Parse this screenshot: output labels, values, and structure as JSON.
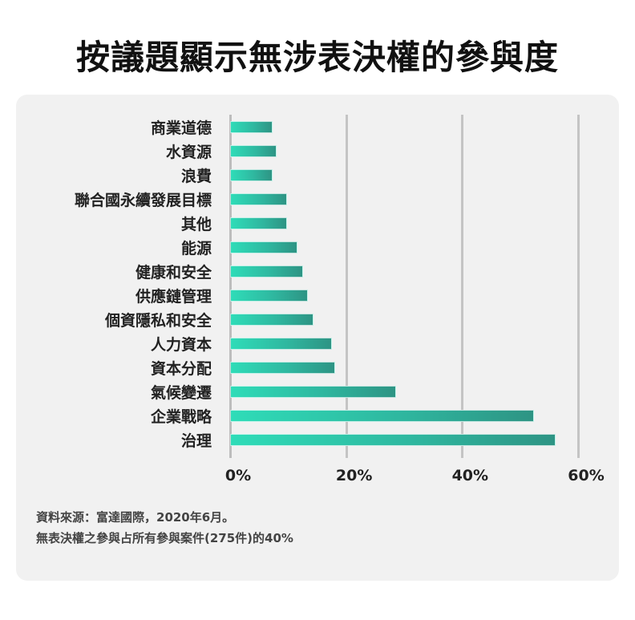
{
  "title": "按議題顯示無涉表決權的參與度",
  "chart_data": {
    "type": "bar",
    "orientation": "horizontal",
    "title": "按議題顯示無涉表決權的參與度",
    "xlabel": "",
    "ylabel": "",
    "xlim": [
      0,
      60
    ],
    "x_ticks": [
      "0%",
      "20%",
      "40%",
      "60%"
    ],
    "x_tick_values": [
      0,
      20,
      40,
      60
    ],
    "grid": true,
    "unit": "%",
    "categories": [
      "商業道德",
      "水資源",
      "浪費",
      "聯合國永續發展目標",
      "其他",
      "能源",
      "健康和安全",
      "供應鏈管理",
      "個資隱私和安全",
      "人力資本",
      "資本分配",
      "氣候變遷",
      "企業戰略",
      "治理"
    ],
    "values": [
      7,
      7.7,
      7,
      9.5,
      9.5,
      11.3,
      12.3,
      13.1,
      14.1,
      17.3,
      17.8,
      28.4,
      52.1,
      55.9
    ],
    "bar_color_start": "#2fdcb8",
    "bar_color_end": "#2e9484"
  },
  "notes": {
    "source": "資料來源：富達國際，2020年6月。",
    "footnote": "無表決權之參與占所有參與案件(275件)的40%"
  }
}
